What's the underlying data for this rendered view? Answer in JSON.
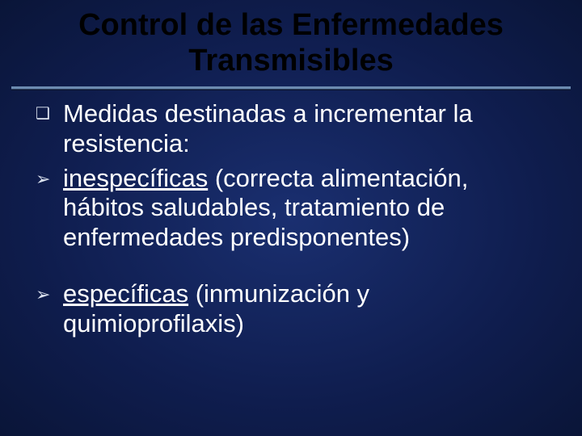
{
  "slide": {
    "title": "Control de las Enfermedades Transmisibles",
    "title_color": "#000000",
    "title_fontsize": 38,
    "background_gradient": [
      "#1a2f70",
      "#0f1d4e",
      "#0a1538"
    ],
    "divider_color_top": "#6c8bb0",
    "divider_color_bottom": "#2c3f5c",
    "body_text_color": "#ffffff",
    "body_fontsize": 31,
    "bullets": [
      {
        "marker": "❑",
        "marker_type": "square",
        "text_lead": " Medidas destinadas a incrementar la resistencia:",
        "underline": null,
        "text_tail": null
      },
      {
        "marker": "➢",
        "marker_type": "arrow",
        "text_lead": " ",
        "underline": "inespecíficas",
        "text_tail": " (correcta alimentación, hábitos saludables, tratamiento de enfermedades predisponentes)"
      },
      {
        "marker": "➢",
        "marker_type": "arrow",
        "text_lead": "",
        "underline": "específicas",
        "text_tail": " (inmunización y quimioprofilaxis)"
      }
    ]
  }
}
